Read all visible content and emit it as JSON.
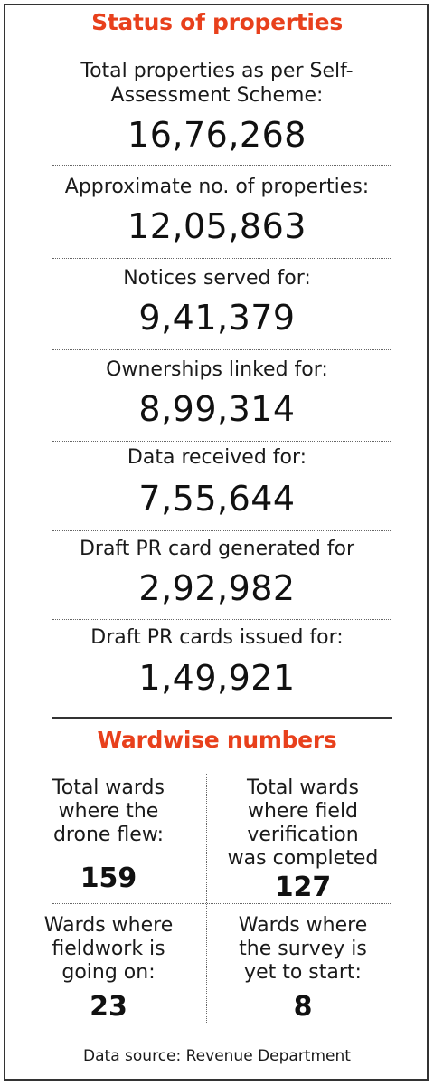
{
  "title": "Status of properties",
  "stats": [
    {
      "label_lines": [
        "Total properties as per Self-",
        "Assessment Scheme:"
      ],
      "value": "16,76,268"
    },
    {
      "label_lines": [
        "Approximate no. of properties:"
      ],
      "value": "12,05,863"
    },
    {
      "label_lines": [
        "Notices served for:"
      ],
      "value": "9,41,379"
    },
    {
      "label_lines": [
        "Ownerships linked for:"
      ],
      "value": "8,99,314"
    },
    {
      "label_lines": [
        "Data received for:"
      ],
      "value": "7,55,644"
    },
    {
      "label_lines": [
        "Draft PR card generated for"
      ],
      "value": "2,92,982"
    },
    {
      "label_lines": [
        "Draft PR cards issued for:"
      ],
      "value": "1,49,921"
    }
  ],
  "wardwise": {
    "title": "Wardwise numbers",
    "cells": [
      {
        "label_lines": [
          "Total wards",
          "where the",
          "drone flew:"
        ],
        "value": "159"
      },
      {
        "label_lines": [
          "Total wards",
          "where field",
          "verification",
          "was completed"
        ],
        "value": "127"
      },
      {
        "label_lines": [
          "Wards where",
          "fieldwork is",
          "going on:"
        ],
        "value": "23"
      },
      {
        "label_lines": [
          "Wards where",
          "the survey is",
          "yet to start:"
        ],
        "value": "8"
      }
    ]
  },
  "source": "Data source: Revenue Department"
}
